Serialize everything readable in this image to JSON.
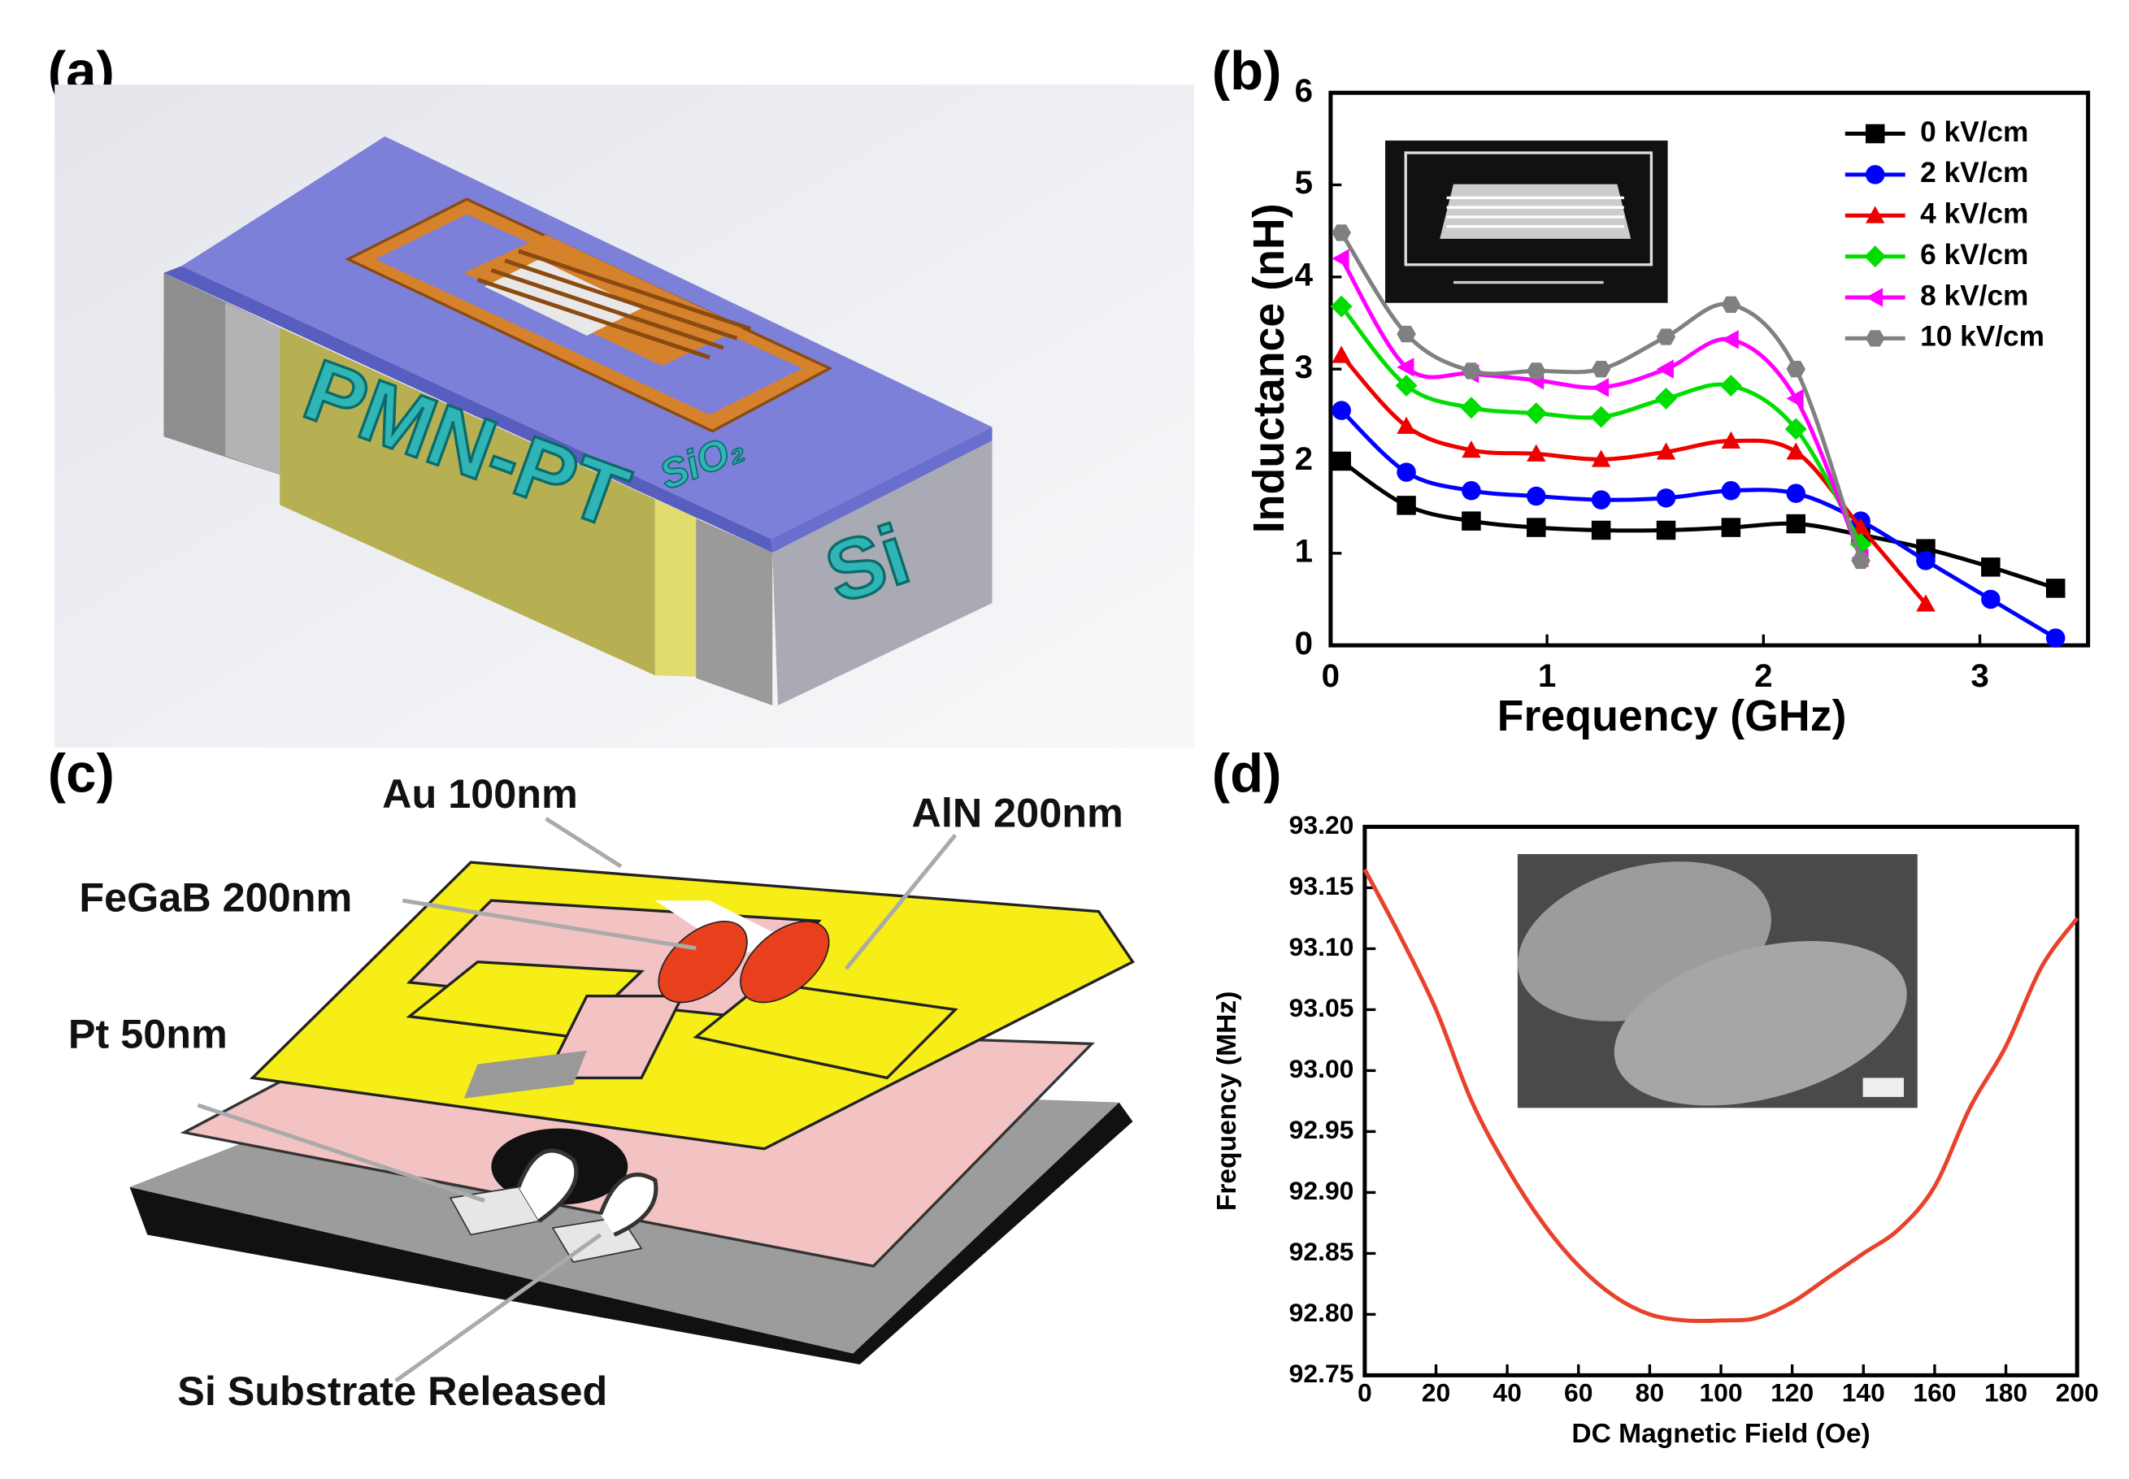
{
  "panel_labels": [
    "(a)",
    "(b)",
    "(c)",
    "(d)"
  ],
  "diagram_a": {
    "labels": [
      "PMN-PT",
      "SiO₂",
      "Si"
    ]
  },
  "diagram_c": {
    "labels": [
      "Au 100nm",
      "AlN 200nm",
      "FeGaB 200nm",
      "Pt 50nm",
      "Si Substrate Released"
    ]
  },
  "chart_data": [
    {
      "type": "line",
      "x_label": "Frequency (GHz)",
      "y_label": "Inductance (nH)",
      "x": [
        0.05,
        0.35,
        0.65,
        0.95,
        1.25,
        1.55,
        1.85,
        2.15,
        2.45,
        2.75,
        3.05,
        3.35
      ],
      "series": [
        {
          "name": "0 kV/cm",
          "color": "#000000",
          "marker": "square",
          "values": [
            2.0,
            1.52,
            1.35,
            1.28,
            1.25,
            1.25,
            1.28,
            1.32,
            1.2,
            1.05,
            0.85,
            0.62
          ]
        },
        {
          "name": "2 kV/cm",
          "color": "#0000ff",
          "marker": "circle",
          "values": [
            2.55,
            1.88,
            1.68,
            1.62,
            1.58,
            1.6,
            1.68,
            1.65,
            1.35,
            0.92,
            0.5,
            0.08
          ]
        },
        {
          "name": "4 kV/cm",
          "color": "#ee0000",
          "marker": "triangle",
          "values": [
            3.15,
            2.38,
            2.12,
            2.08,
            2.02,
            2.1,
            2.22,
            2.1,
            1.28,
            0.45,
            null,
            null
          ]
        },
        {
          "name": "6 kV/cm",
          "color": "#00dd00",
          "marker": "diamond",
          "values": [
            3.68,
            2.82,
            2.58,
            2.52,
            2.48,
            2.68,
            2.82,
            2.35,
            1.1,
            null,
            null,
            null
          ]
        },
        {
          "name": "8 kV/cm",
          "color": "#ff00ff",
          "marker": "left-triangle",
          "values": [
            4.2,
            3.02,
            2.95,
            2.88,
            2.8,
            3.0,
            3.32,
            2.68,
            0.95,
            null,
            null,
            null
          ]
        },
        {
          "name": "10 kV/cm",
          "color": "#808080",
          "marker": "hexagon",
          "values": [
            4.48,
            3.38,
            2.98,
            2.98,
            3.0,
            3.35,
            3.7,
            3.0,
            0.92,
            null,
            null,
            null
          ]
        }
      ],
      "xlim": [
        0,
        3.5
      ],
      "xticks": [
        0,
        1,
        2,
        3
      ],
      "ylim": [
        0,
        6
      ],
      "yticks": [
        0,
        1,
        2,
        3,
        4,
        5,
        6
      ],
      "legend": "upper right"
    },
    {
      "type": "line",
      "x_label": "DC Magnetic Field (Oe)",
      "y_label": "Frequency (MHz)",
      "x": [
        0,
        10,
        20,
        30,
        40,
        50,
        60,
        70,
        80,
        90,
        100,
        110,
        120,
        130,
        140,
        150,
        160,
        170,
        180,
        190,
        200
      ],
      "values": [
        93.165,
        93.11,
        93.05,
        92.975,
        92.92,
        92.875,
        92.84,
        92.815,
        92.8,
        92.795,
        92.795,
        92.797,
        92.81,
        92.83,
        92.85,
        92.87,
        92.905,
        92.97,
        93.02,
        93.085,
        93.125
      ],
      "color": "#e8412c",
      "xlim": [
        0,
        200
      ],
      "xticks": [
        0,
        20,
        40,
        60,
        80,
        100,
        120,
        140,
        160,
        180,
        200
      ],
      "ylim": [
        92.75,
        93.2
      ],
      "yticks": [
        92.75,
        {
          "value": 92.8,
          "label": "92.80"
        },
        92.85,
        {
          "value": 92.9,
          "label": "92.90"
        },
        92.95,
        {
          "value": 93.0,
          "label": "93.00"
        },
        93.05,
        {
          "value": 93.1,
          "label": "93.10"
        },
        93.15,
        {
          "value": 93.2,
          "label": "93.20"
        }
      ]
    }
  ]
}
